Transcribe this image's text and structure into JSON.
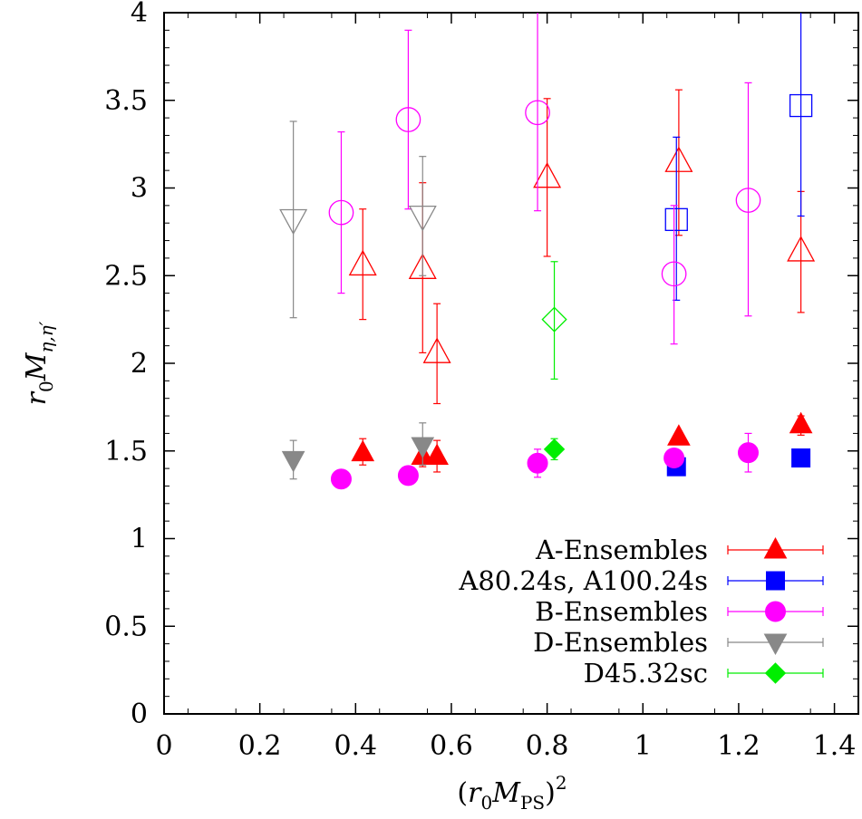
{
  "chart_data": {
    "type": "scatter",
    "title": "",
    "xlabel": "(r0MPS)²",
    "ylabel": "r0Mη,η′",
    "xlim": [
      0,
      1.45
    ],
    "ylim": [
      0,
      4
    ],
    "x_ticks": [
      "0",
      "0.2",
      "0.4",
      "0.6",
      "0.8",
      "1",
      "1.2",
      "1.4"
    ],
    "y_ticks": [
      "0",
      "0.5",
      "1",
      "1.5",
      "2",
      "2.5",
      "3",
      "3.5",
      "4"
    ],
    "grid": false,
    "legend_position": "bottom-right",
    "series": [
      {
        "name": "A-Ensembles",
        "color": "#ff0000",
        "marker": "triangle-up",
        "points": [
          {
            "x": 0.415,
            "y": 1.49,
            "ylo": 1.42,
            "yhi": 1.57,
            "filled": true
          },
          {
            "x": 0.54,
            "y": 1.47,
            "ylo": 1.41,
            "yhi": 1.53,
            "filled": true
          },
          {
            "x": 0.57,
            "y": 1.47,
            "ylo": 1.38,
            "yhi": 1.56,
            "filled": true
          },
          {
            "x": 1.075,
            "y": 1.58,
            "ylo": 1.55,
            "yhi": 1.61,
            "filled": true
          },
          {
            "x": 1.33,
            "y": 1.65,
            "ylo": 1.59,
            "yhi": 1.7,
            "filled": true
          },
          {
            "x": 0.415,
            "y": 2.56,
            "ylo": 2.25,
            "yhi": 2.88,
            "filled": false
          },
          {
            "x": 0.54,
            "y": 2.54,
            "ylo": 2.06,
            "yhi": 3.03,
            "filled": false
          },
          {
            "x": 0.57,
            "y": 2.06,
            "ylo": 1.77,
            "yhi": 2.34,
            "filled": false
          },
          {
            "x": 0.8,
            "y": 3.06,
            "ylo": 2.61,
            "yhi": 3.51,
            "filled": false
          },
          {
            "x": 1.075,
            "y": 3.15,
            "ylo": 2.73,
            "yhi": 3.56,
            "filled": false
          },
          {
            "x": 1.33,
            "y": 2.64,
            "ylo": 2.29,
            "yhi": 2.98,
            "filled": false
          }
        ]
      },
      {
        "name": "A80.24s, A100.24s",
        "color": "#0000ff",
        "marker": "square",
        "points": [
          {
            "x": 1.07,
            "y": 1.41,
            "ylo": 1.39,
            "yhi": 1.43,
            "filled": true
          },
          {
            "x": 1.33,
            "y": 1.46,
            "ylo": 1.45,
            "yhi": 1.47,
            "filled": true
          },
          {
            "x": 1.07,
            "y": 2.82,
            "ylo": 2.36,
            "yhi": 3.29,
            "filled": false
          },
          {
            "x": 1.33,
            "y": 3.47,
            "ylo": 2.84,
            "yhi": 4.0,
            "filled": false
          }
        ]
      },
      {
        "name": "B-Ensembles",
        "color": "#ff00ff",
        "marker": "circle",
        "points": [
          {
            "x": 0.37,
            "y": 1.34,
            "ylo": 1.29,
            "yhi": 1.39,
            "filled": true
          },
          {
            "x": 0.51,
            "y": 1.36,
            "ylo": 1.32,
            "yhi": 1.4,
            "filled": true
          },
          {
            "x": 0.78,
            "y": 1.43,
            "ylo": 1.35,
            "yhi": 1.51,
            "filled": true
          },
          {
            "x": 1.065,
            "y": 1.46,
            "ylo": 1.41,
            "yhi": 1.51,
            "filled": true
          },
          {
            "x": 1.22,
            "y": 1.49,
            "ylo": 1.38,
            "yhi": 1.6,
            "filled": true
          },
          {
            "x": 0.37,
            "y": 2.86,
            "ylo": 2.4,
            "yhi": 3.32,
            "filled": false
          },
          {
            "x": 0.51,
            "y": 3.39,
            "ylo": 2.88,
            "yhi": 3.9,
            "filled": false
          },
          {
            "x": 0.78,
            "y": 3.43,
            "ylo": 2.87,
            "yhi": 4.0,
            "filled": false
          },
          {
            "x": 1.065,
            "y": 2.51,
            "ylo": 2.11,
            "yhi": 2.9,
            "filled": false
          },
          {
            "x": 1.22,
            "y": 2.93,
            "ylo": 2.27,
            "yhi": 3.6,
            "filled": false
          }
        ]
      },
      {
        "name": "D-Ensembles",
        "color": "#888888",
        "marker": "triangle-down",
        "points": [
          {
            "x": 0.27,
            "y": 1.45,
            "ylo": 1.34,
            "yhi": 1.56,
            "filled": true
          },
          {
            "x": 0.54,
            "y": 1.53,
            "ylo": 1.42,
            "yhi": 1.66,
            "filled": true
          },
          {
            "x": 0.27,
            "y": 2.82,
            "ylo": 2.26,
            "yhi": 3.38,
            "filled": false
          },
          {
            "x": 0.54,
            "y": 2.84,
            "ylo": 2.5,
            "yhi": 3.18,
            "filled": false
          }
        ]
      },
      {
        "name": "D45.32sc",
        "color": "#00ee00",
        "marker": "diamond",
        "points": [
          {
            "x": 0.815,
            "y": 1.51,
            "ylo": 1.45,
            "yhi": 1.57,
            "filled": true
          },
          {
            "x": 0.815,
            "y": 2.25,
            "ylo": 1.91,
            "yhi": 2.58,
            "filled": false
          }
        ]
      }
    ]
  }
}
